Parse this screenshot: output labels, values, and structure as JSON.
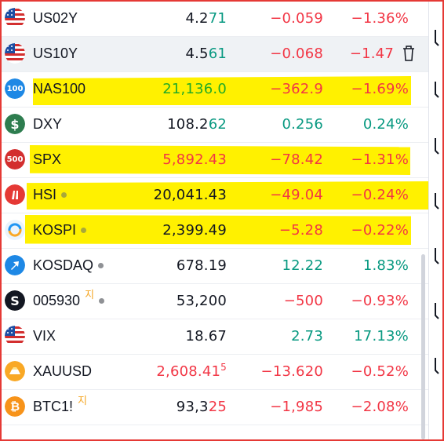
{
  "rows": [
    {
      "symbol": "US02Y",
      "icon": "us-flag-icon",
      "last_main": "4.2",
      "last_tail": "71",
      "last_sup": "",
      "change": "−0.059",
      "change_pct": "−1.36%",
      "dir": "down",
      "highlight": false
    },
    {
      "symbol": "US10Y",
      "icon": "us-flag-icon",
      "last_main": "4.5",
      "last_tail": "61",
      "last_sup": "",
      "change": "−0.068",
      "change_pct": "−1.47",
      "dir": "down",
      "highlight": false,
      "hover_action": "trash-icon"
    },
    {
      "symbol": "NAS100",
      "icon": "nas100-badge-icon",
      "icon_text": "100",
      "last_main": "21,136.0",
      "last_tail": "",
      "last_sup": "",
      "change": "−362.9",
      "change_pct": "−1.69%",
      "dir": "down",
      "last_color": "up-bright",
      "highlight": true
    },
    {
      "symbol": "DXY",
      "icon": "dollar-icon",
      "icon_text": "$",
      "last_main": "108.2",
      "last_tail": "62",
      "last_sup": "",
      "change": "0.256",
      "change_pct": "0.24%",
      "dir": "up",
      "highlight": false
    },
    {
      "symbol": "SPX",
      "icon": "spx-500-badge-icon",
      "icon_text": "500",
      "last_main": "5,892.43",
      "last_tail": "",
      "last_sup": "",
      "change": "−78.42",
      "change_pct": "−1.31%",
      "dir": "down",
      "last_color": "down",
      "highlight": true
    },
    {
      "symbol": "HSI",
      "icon": "hsi-logo-icon",
      "dot": "olive",
      "last_main": "20,041.43",
      "last_tail": "",
      "last_sup": "",
      "change": "−49.04",
      "change_pct": "−0.24%",
      "dir": "down",
      "highlight": true
    },
    {
      "symbol": "KOSPI",
      "icon": "kospi-logo-icon",
      "dot": "olive",
      "last_main": "2,399.49",
      "last_tail": "",
      "last_sup": "",
      "change": "−5.28",
      "change_pct": "−0.22%",
      "dir": "down",
      "highlight": true
    },
    {
      "symbol": "KOSDAQ",
      "icon": "kosdaq-logo-icon",
      "dot": "gray",
      "last_main": "678.19",
      "last_tail": "",
      "last_sup": "",
      "change": "12.22",
      "change_pct": "1.83%",
      "dir": "up",
      "highlight": false
    },
    {
      "symbol": "005930",
      "icon": "samsung-s-icon",
      "icon_text": "S",
      "sup": "지",
      "dot": "gray",
      "last_main": "53,200",
      "last_tail": "",
      "last_sup": "",
      "change": "−500",
      "change_pct": "−0.93%",
      "dir": "down",
      "highlight": false
    },
    {
      "symbol": "VIX",
      "icon": "us-flag-icon",
      "last_main": "18.67",
      "last_tail": "",
      "last_sup": "",
      "change": "2.73",
      "change_pct": "17.13%",
      "dir": "up",
      "highlight": false
    },
    {
      "symbol": "XAUUSD",
      "icon": "gold-bar-icon",
      "last_main": "2,608.41",
      "last_tail": "",
      "last_sup": "5",
      "change": "−13.620",
      "change_pct": "−0.52%",
      "dir": "down",
      "last_color": "down",
      "highlight": false
    },
    {
      "symbol": "BTC1!",
      "icon": "bitcoin-icon",
      "icon_text": "₿",
      "sup": "지",
      "last_main": "93,3",
      "last_tail": "25",
      "last_sup": "",
      "change": "−1,985",
      "change_pct": "−2.08%",
      "dir": "down",
      "highlight": false
    }
  ],
  "colors": {
    "up": "#089981",
    "down": "#f23645",
    "up_bright": "#22ab26",
    "highlight": "#fff100"
  }
}
